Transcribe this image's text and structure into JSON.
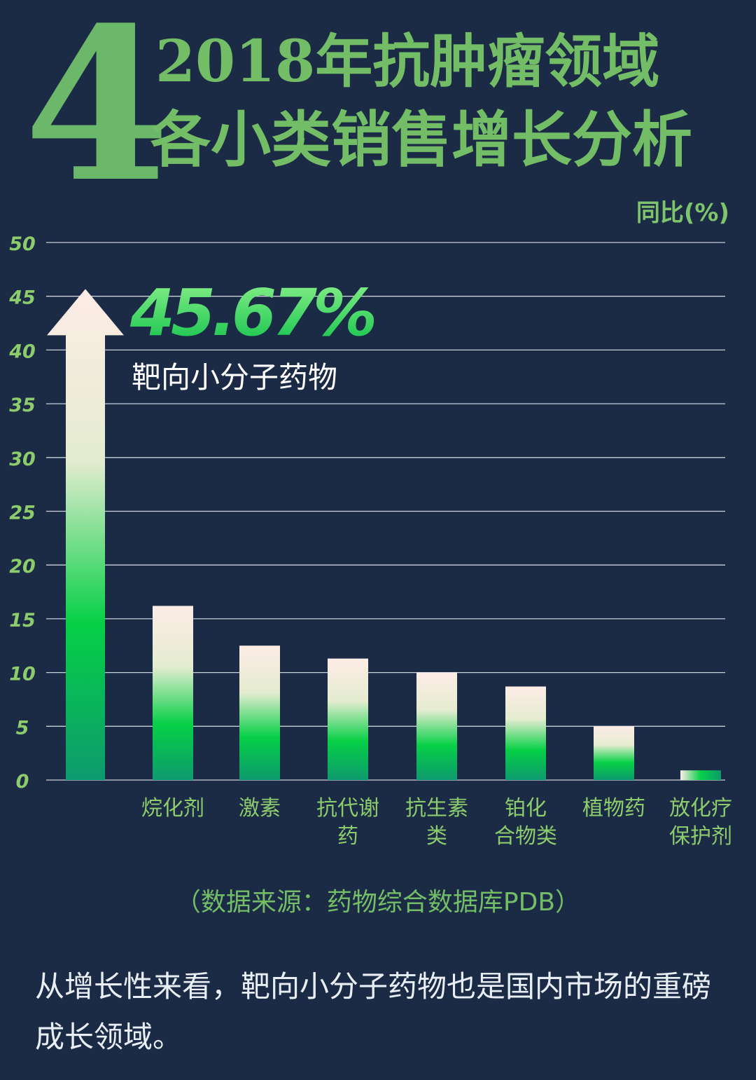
{
  "header": {
    "number": "4",
    "title_line1": "2018年抗肿瘤领域",
    "title_line2": "各小类销售增长分析"
  },
  "chart_data": {
    "type": "bar",
    "title": "2018年抗肿瘤领域各小类销售增长分析",
    "ylabel": "同比(%)",
    "ylim": [
      0,
      50
    ],
    "yticks": [
      "0",
      "5",
      "10",
      "15",
      "20",
      "25",
      "30",
      "35",
      "40",
      "45",
      "50"
    ],
    "categories": [
      "靶向小分子药物",
      "烷化剂",
      "激素",
      "抗代谢药",
      "抗生素类",
      "铂化合物类",
      "植物药",
      "放化疗保护剂"
    ],
    "x_tick_labels": [
      [],
      [
        "烷化剂"
      ],
      [
        "激素"
      ],
      [
        "抗代谢",
        "药"
      ],
      [
        "抗生素",
        "类"
      ],
      [
        "铂化",
        "合物类"
      ],
      [
        "植物药"
      ],
      [
        "放化疗",
        "保护剂"
      ]
    ],
    "values": [
      45.67,
      16.2,
      12.5,
      11.3,
      10.0,
      8.7,
      5.0,
      0.9
    ],
    "highlight": {
      "value_label": "45.67%",
      "category_label": "靶向小分子药物"
    },
    "grid": true
  },
  "source": "（数据来源：药物综合数据库PDB）",
  "summary": "从增长性来看，靶向小分子药物也是国内市场的重磅成长领域。",
  "colors": {
    "background": "#1c2b45",
    "accent_green": "#73bd66",
    "bar_top": "#fdece6",
    "bar_mid": "#06d046",
    "bar_bottom": "#0d9a6e"
  }
}
